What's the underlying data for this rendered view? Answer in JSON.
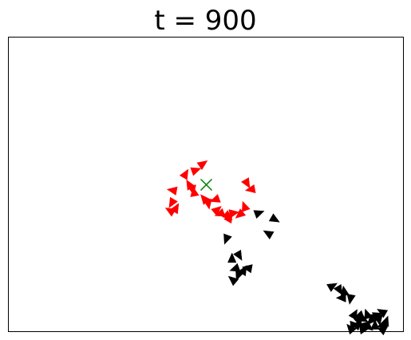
{
  "chart_data": {
    "type": "scatter",
    "title": "t = 900",
    "xlabel": "",
    "ylabel": "",
    "xlim": [
      0,
      100
    ],
    "ylim": [
      0,
      75
    ],
    "grid": false,
    "axis_ticks": false,
    "marker": "triangle",
    "target": {
      "symbol": "x",
      "color": "#008000",
      "x": 50.1,
      "y": 37.4
    },
    "series": [
      {
        "color": "#ff0000",
        "points": [
          [
            49.2,
            42.7,
            35
          ],
          [
            47.4,
            41.1,
            20
          ],
          [
            44.8,
            40.1,
            60
          ],
          [
            45.8,
            37.4,
            120
          ],
          [
            46.6,
            36.2,
            280
          ],
          [
            47.0,
            35.5,
            100
          ],
          [
            41.6,
            36.0,
            170
          ],
          [
            60.4,
            37.8,
            300
          ],
          [
            61.4,
            36.2,
            190
          ],
          [
            41.4,
            32.8,
            240
          ],
          [
            42.4,
            31.4,
            60
          ],
          [
            41.0,
            30.8,
            150
          ],
          [
            49.6,
            33.8,
            130
          ],
          [
            50.6,
            32.6,
            280
          ],
          [
            52.8,
            31.0,
            40
          ],
          [
            53.6,
            30.0,
            200
          ],
          [
            55.6,
            29.4,
            320
          ],
          [
            57.0,
            30.2,
            10
          ],
          [
            58.6,
            29.8,
            220
          ],
          [
            59.8,
            31.8,
            110
          ],
          [
            52.4,
            33.6,
            200
          ],
          [
            56.0,
            29.0,
            60
          ]
        ]
      },
      {
        "color": "#000000",
        "points": [
          [
            63.4,
            30.2,
            20
          ],
          [
            67.4,
            28.6,
            330
          ],
          [
            65.8,
            25.0,
            150
          ],
          [
            55.2,
            23.6,
            250
          ],
          [
            56.6,
            18.6,
            90
          ],
          [
            58.4,
            19.4,
            300
          ],
          [
            57.4,
            16.0,
            200
          ],
          [
            59.6,
            15.6,
            60
          ],
          [
            60.6,
            16.2,
            170
          ],
          [
            58.2,
            14.4,
            250
          ],
          [
            56.8,
            13.2,
            140
          ],
          [
            82.0,
            11.6,
            30
          ],
          [
            83.8,
            10.6,
            300
          ],
          [
            85.0,
            10.2,
            100
          ],
          [
            84.4,
            8.6,
            180
          ],
          [
            86.6,
            8.4,
            260
          ],
          [
            87.6,
            4.4,
            60
          ],
          [
            88.8,
            4.0,
            200
          ],
          [
            89.8,
            3.2,
            330
          ],
          [
            90.8,
            4.4,
            110
          ],
          [
            91.8,
            2.8,
            230
          ],
          [
            93.4,
            4.2,
            20
          ],
          [
            94.6,
            5.0,
            150
          ],
          [
            93.8,
            3.0,
            280
          ],
          [
            92.8,
            1.6,
            90
          ],
          [
            91.2,
            1.2,
            320
          ],
          [
            89.8,
            1.6,
            170
          ],
          [
            88.4,
            1.8,
            50
          ],
          [
            87.2,
            1.4,
            250
          ],
          [
            86.6,
            0.8,
            130
          ],
          [
            90.0,
            0.6,
            10
          ],
          [
            94.6,
            1.6,
            200
          ],
          [
            95.6,
            2.6,
            70
          ],
          [
            88.8,
            2.6,
            290
          ],
          [
            92.4,
            3.8,
            160
          ],
          [
            95.0,
            0.6,
            40
          ]
        ]
      }
    ]
  }
}
